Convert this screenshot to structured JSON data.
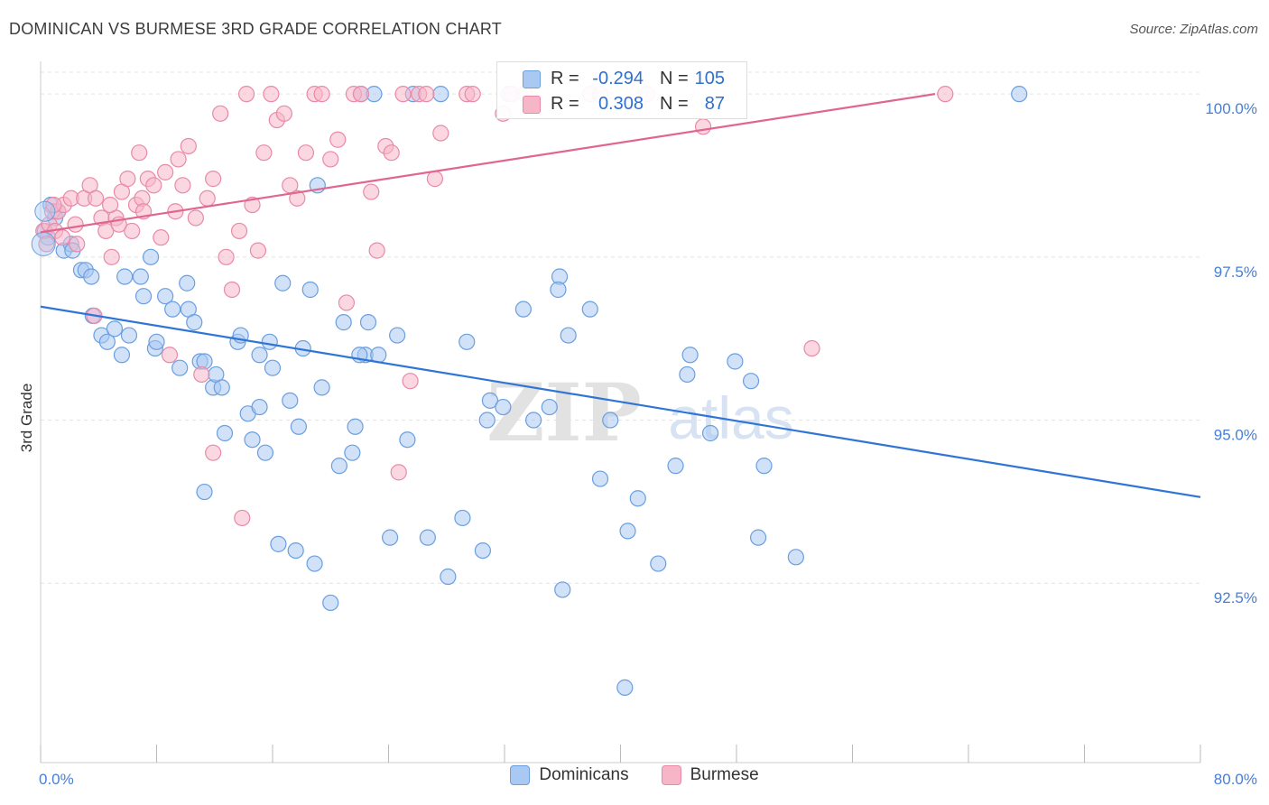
{
  "title": "DOMINICAN VS BURMESE 3RD GRADE CORRELATION CHART",
  "source": "Source: ZipAtlas.com",
  "watermark": {
    "zip": "ZIP",
    "atlas": "atlas"
  },
  "stats": [
    {
      "r_label": "R =",
      "r_value": "-0.294",
      "n_label": "N =",
      "n_value": "105"
    },
    {
      "r_label": "R =",
      "r_value": "0.308",
      "n_label": "N =",
      "n_value": "87"
    }
  ],
  "legend": [
    {
      "label": "Dominicans"
    },
    {
      "label": "Burmese"
    }
  ],
  "colors": {
    "blue_fill": "#a9c9f2",
    "blue_stroke": "#6a9fe0",
    "blue_line": "#2f75d6",
    "pink_fill": "#f7b6c8",
    "pink_stroke": "#e88aa8",
    "pink_line": "#e06690",
    "tick_text": "#4a7fd1",
    "grid": "#e3e3e3"
  },
  "chart_data": {
    "type": "scatter",
    "title": "DOMINICAN VS BURMESE 3RD GRADE CORRELATION CHART",
    "xlabel": "",
    "ylabel": "3rd Grade",
    "xlim": [
      0,
      80
    ],
    "ylim": [
      89.75,
      100.5
    ],
    "x_tick_labels": [
      "0.0%",
      "80.0%"
    ],
    "y_ticks": [
      {
        "value": 92.5,
        "label": "92.5%"
      },
      {
        "value": 95.0,
        "label": "95.0%"
      },
      {
        "value": 97.5,
        "label": "97.5%"
      },
      {
        "value": 100.0,
        "label": "100.0%"
      }
    ],
    "grid": true,
    "legend_position": "bottom-center",
    "series": [
      {
        "name": "Dominicans",
        "r": -0.294,
        "n": 105,
        "trend": {
          "x": [
            0,
            80
          ],
          "y": [
            96.74,
            93.82
          ]
        },
        "points": [
          [
            0.3,
            97.9
          ],
          [
            0.5,
            97.8
          ],
          [
            0.7,
            98.3
          ],
          [
            1.0,
            98.1
          ],
          [
            1.2,
            98.2
          ],
          [
            1.6,
            97.6
          ],
          [
            2.1,
            97.7
          ],
          [
            2.2,
            97.6
          ],
          [
            2.8,
            97.3
          ],
          [
            3.1,
            97.3
          ],
          [
            3.5,
            97.2
          ],
          [
            3.6,
            96.6
          ],
          [
            4.2,
            96.3
          ],
          [
            4.6,
            96.2
          ],
          [
            5.1,
            96.4
          ],
          [
            5.6,
            96.0
          ],
          [
            5.8,
            97.2
          ],
          [
            6.1,
            96.3
          ],
          [
            6.9,
            97.2
          ],
          [
            7.1,
            96.9
          ],
          [
            7.6,
            97.5
          ],
          [
            7.9,
            96.1
          ],
          [
            8.6,
            96.9
          ],
          [
            9.1,
            96.7
          ],
          [
            9.6,
            95.8
          ],
          [
            10.1,
            97.1
          ],
          [
            10.2,
            96.7
          ],
          [
            10.6,
            96.5
          ],
          [
            11.0,
            95.9
          ],
          [
            11.3,
            95.9
          ],
          [
            11.9,
            95.5
          ],
          [
            12.1,
            95.7
          ],
          [
            12.5,
            95.5
          ],
          [
            12.7,
            94.8
          ],
          [
            13.6,
            96.2
          ],
          [
            13.8,
            96.3
          ],
          [
            14.3,
            95.1
          ],
          [
            14.6,
            94.7
          ],
          [
            15.1,
            96.0
          ],
          [
            15.5,
            94.5
          ],
          [
            15.8,
            96.2
          ],
          [
            16.0,
            95.8
          ],
          [
            16.4,
            93.1
          ],
          [
            16.7,
            97.1
          ],
          [
            17.2,
            95.3
          ],
          [
            17.6,
            93.0
          ],
          [
            17.8,
            94.9
          ],
          [
            18.1,
            96.1
          ],
          [
            18.6,
            97.0
          ],
          [
            18.9,
            92.8
          ],
          [
            19.1,
            98.6
          ],
          [
            19.4,
            95.5
          ],
          [
            20.0,
            92.2
          ],
          [
            20.6,
            94.3
          ],
          [
            20.9,
            96.5
          ],
          [
            21.5,
            94.5
          ],
          [
            21.7,
            94.9
          ],
          [
            22.1,
            100.0
          ],
          [
            22.4,
            96.0
          ],
          [
            22.6,
            96.5
          ],
          [
            23.0,
            100.0
          ],
          [
            23.3,
            96.0
          ],
          [
            24.1,
            93.2
          ],
          [
            24.6,
            96.3
          ],
          [
            25.3,
            94.7
          ],
          [
            25.7,
            100.0
          ],
          [
            26.7,
            93.2
          ],
          [
            27.6,
            100.0
          ],
          [
            28.1,
            92.6
          ],
          [
            29.1,
            93.5
          ],
          [
            29.4,
            96.2
          ],
          [
            30.5,
            93.0
          ],
          [
            31.0,
            95.3
          ],
          [
            30.8,
            95.0
          ],
          [
            31.9,
            95.2
          ],
          [
            32.3,
            100.0
          ],
          [
            33.3,
            96.7
          ],
          [
            34.0,
            95.0
          ],
          [
            35.1,
            95.2
          ],
          [
            35.8,
            97.2
          ],
          [
            35.7,
            97.0
          ],
          [
            36.0,
            92.4
          ],
          [
            37.9,
            96.7
          ],
          [
            38.6,
            94.1
          ],
          [
            39.3,
            95.0
          ],
          [
            40.3,
            90.9
          ],
          [
            40.5,
            93.3
          ],
          [
            41.2,
            93.8
          ],
          [
            42.6,
            92.8
          ],
          [
            43.8,
            94.3
          ],
          [
            44.6,
            95.7
          ],
          [
            44.8,
            96.0
          ],
          [
            46.2,
            94.8
          ],
          [
            47.9,
            95.9
          ],
          [
            49.0,
            95.6
          ],
          [
            49.5,
            93.2
          ],
          [
            49.9,
            94.3
          ],
          [
            52.1,
            92.9
          ],
          [
            67.5,
            100.0
          ],
          [
            36.4,
            96.3
          ],
          [
            15.1,
            95.2
          ],
          [
            11.3,
            93.9
          ],
          [
            8.0,
            96.2
          ],
          [
            22.0,
            96.0
          ]
        ]
      },
      {
        "name": "Burmese",
        "r": 0.308,
        "n": 87,
        "trend": {
          "x": [
            0,
            61.7
          ],
          "y": [
            97.88,
            100.0
          ]
        },
        "points": [
          [
            0.2,
            97.9
          ],
          [
            0.4,
            97.7
          ],
          [
            0.6,
            98.0
          ],
          [
            0.8,
            98.2
          ],
          [
            1.0,
            97.9
          ],
          [
            1.2,
            98.2
          ],
          [
            1.6,
            98.3
          ],
          [
            2.1,
            98.4
          ],
          [
            2.5,
            97.7
          ],
          [
            3.0,
            98.4
          ],
          [
            3.4,
            98.6
          ],
          [
            3.8,
            98.4
          ],
          [
            4.2,
            98.1
          ],
          [
            4.5,
            97.9
          ],
          [
            4.9,
            97.5
          ],
          [
            5.2,
            98.1
          ],
          [
            5.6,
            98.5
          ],
          [
            6.0,
            98.7
          ],
          [
            6.3,
            97.9
          ],
          [
            6.6,
            98.3
          ],
          [
            7.0,
            98.4
          ],
          [
            7.4,
            98.7
          ],
          [
            7.8,
            98.6
          ],
          [
            8.3,
            97.8
          ],
          [
            8.6,
            98.8
          ],
          [
            8.9,
            96.0
          ],
          [
            9.3,
            98.2
          ],
          [
            9.8,
            98.6
          ],
          [
            10.2,
            99.2
          ],
          [
            10.7,
            98.1
          ],
          [
            11.1,
            95.7
          ],
          [
            11.5,
            98.4
          ],
          [
            11.9,
            98.7
          ],
          [
            12.4,
            99.7
          ],
          [
            12.8,
            97.5
          ],
          [
            13.2,
            97.0
          ],
          [
            13.7,
            97.9
          ],
          [
            14.2,
            100.0
          ],
          [
            14.6,
            98.3
          ],
          [
            15.0,
            97.6
          ],
          [
            15.4,
            99.1
          ],
          [
            15.9,
            100.0
          ],
          [
            16.3,
            99.6
          ],
          [
            16.8,
            99.7
          ],
          [
            17.2,
            98.6
          ],
          [
            17.7,
            98.4
          ],
          [
            18.3,
            99.1
          ],
          [
            18.9,
            100.0
          ],
          [
            19.4,
            100.0
          ],
          [
            20.0,
            99.0
          ],
          [
            20.5,
            99.3
          ],
          [
            21.1,
            96.8
          ],
          [
            21.6,
            100.0
          ],
          [
            22.1,
            100.0
          ],
          [
            22.8,
            98.5
          ],
          [
            23.2,
            97.6
          ],
          [
            23.8,
            99.2
          ],
          [
            24.2,
            99.1
          ],
          [
            25.0,
            100.0
          ],
          [
            25.5,
            95.6
          ],
          [
            26.1,
            100.0
          ],
          [
            26.6,
            100.0
          ],
          [
            27.2,
            98.7
          ],
          [
            27.6,
            99.4
          ],
          [
            29.4,
            100.0
          ],
          [
            29.8,
            100.0
          ],
          [
            31.9,
            99.7
          ],
          [
            32.5,
            100.0
          ],
          [
            33.4,
            100.0
          ],
          [
            37.9,
            100.0
          ],
          [
            38.6,
            100.0
          ],
          [
            41.8,
            100.0
          ],
          [
            45.7,
            99.5
          ],
          [
            53.2,
            96.1
          ],
          [
            62.4,
            100.0
          ],
          [
            3.7,
            96.6
          ],
          [
            6.8,
            99.1
          ],
          [
            9.5,
            99.0
          ],
          [
            11.9,
            94.5
          ],
          [
            13.9,
            93.5
          ],
          [
            24.7,
            94.2
          ],
          [
            0.9,
            98.3
          ],
          [
            1.5,
            97.8
          ],
          [
            2.4,
            98.0
          ],
          [
            5.4,
            98.0
          ],
          [
            7.1,
            98.2
          ],
          [
            4.8,
            98.3
          ]
        ]
      }
    ]
  }
}
